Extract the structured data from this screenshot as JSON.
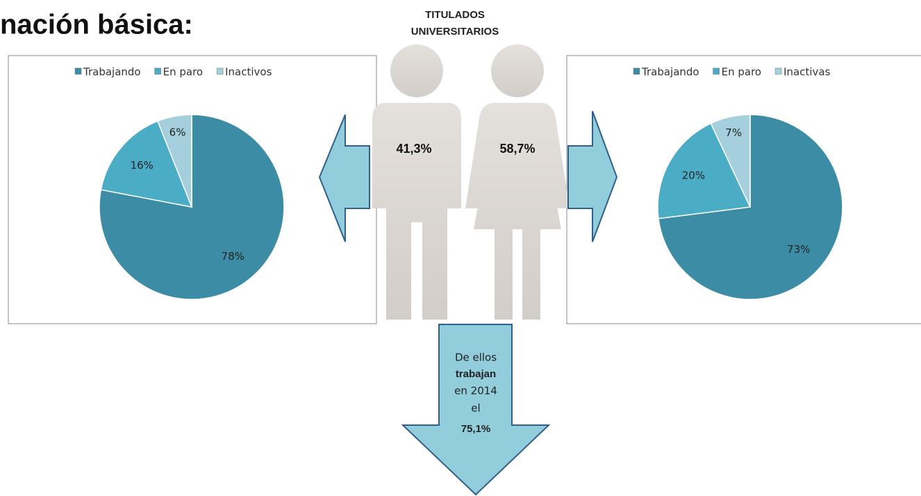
{
  "heading": "nación básica:",
  "center": {
    "title_lines": [
      "TITULADOS",
      "UNIVERSITARIOS"
    ],
    "men_share": "41,3%",
    "women_share": "58,7%",
    "arrow_lines": [
      "De ellos",
      "trabajan",
      "en 2014",
      "el",
      "75,1%"
    ]
  },
  "chart_data": [
    {
      "type": "pie",
      "categories": [
        "Trabajando",
        "En paro",
        "Inactivos"
      ],
      "values": [
        78,
        16,
        6
      ],
      "value_labels": [
        "78%",
        "16%",
        "6%"
      ],
      "colors": [
        "#3b8ca4",
        "#4bacc6",
        "#a5cfdc"
      ],
      "legend": "top"
    },
    {
      "type": "pie",
      "categories": [
        "Trabajando",
        "En paro",
        "Inactivas"
      ],
      "values": [
        73,
        20,
        7
      ],
      "value_labels": [
        "73%",
        "20%",
        "7%"
      ],
      "colors": [
        "#3b8ca4",
        "#4bacc6",
        "#a5cfdc"
      ],
      "legend": "top"
    }
  ]
}
